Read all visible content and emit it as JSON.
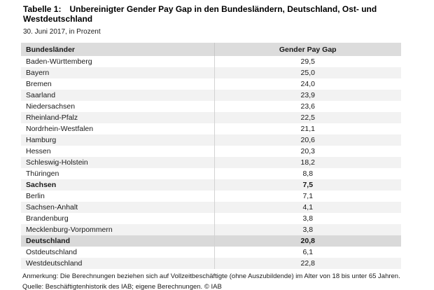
{
  "page": {
    "title_label": "Tabelle 1:",
    "title_text": "Unbereinigter Gender Pay Gap in den Bundesländern, Deutschland, Ost- und Westdeutschland",
    "subtitle": "30. Juni 2017, in Prozent",
    "note": "Anmerkung: Die Berechnungen beziehen sich auf Vollzeitbeschäftigte (ohne Auszubildende) im Alter von 18 bis unter 65 Jahren.",
    "source": "Quelle: Beschäftigtenhistorik des IAB; eigene Berechnungen. © IAB"
  },
  "table": {
    "columns": {
      "region": "Bundesländer",
      "value": "Gender Pay Gap"
    },
    "rows": [
      {
        "name": "Baden-Württemberg",
        "value": "29,5",
        "bold": false,
        "highlight": false
      },
      {
        "name": "Bayern",
        "value": "25,0",
        "bold": false,
        "highlight": false
      },
      {
        "name": "Bremen",
        "value": "24,0",
        "bold": false,
        "highlight": false
      },
      {
        "name": "Saarland",
        "value": "23,9",
        "bold": false,
        "highlight": false
      },
      {
        "name": "Niedersachsen",
        "value": "23,6",
        "bold": false,
        "highlight": false
      },
      {
        "name": "Rheinland-Pfalz",
        "value": "22,5",
        "bold": false,
        "highlight": false
      },
      {
        "name": "Nordrhein-Westfalen",
        "value": "21,1",
        "bold": false,
        "highlight": false
      },
      {
        "name": "Hamburg",
        "value": "20,6",
        "bold": false,
        "highlight": false
      },
      {
        "name": "Hessen",
        "value": "20,3",
        "bold": false,
        "highlight": false
      },
      {
        "name": "Schleswig-Holstein",
        "value": "18,2",
        "bold": false,
        "highlight": false
      },
      {
        "name": "Thüringen",
        "value": "8,8",
        "bold": false,
        "highlight": false
      },
      {
        "name": "Sachsen",
        "value": "7,5",
        "bold": true,
        "highlight": false
      },
      {
        "name": "Berlin",
        "value": "7,1",
        "bold": false,
        "highlight": false
      },
      {
        "name": "Sachsen-Anhalt",
        "value": "4,1",
        "bold": false,
        "highlight": false
      },
      {
        "name": "Brandenburg",
        "value": "3,8",
        "bold": false,
        "highlight": false
      },
      {
        "name": "Mecklenburg-Vorpommern",
        "value": "3,8",
        "bold": false,
        "highlight": false
      },
      {
        "name": "Deutschland",
        "value": "20,8",
        "bold": true,
        "highlight": true
      },
      {
        "name": "Ostdeutschland",
        "value": "6,1",
        "bold": false,
        "highlight": false
      },
      {
        "name": "Westdeutschland",
        "value": "22,8",
        "bold": false,
        "highlight": false
      }
    ]
  },
  "colors": {
    "header_bg": "#dcdcdc",
    "alt_row_bg": "#f2f2f2",
    "highlight_row_bg": "#d9d9d9",
    "column_divider": "#d2d2d2",
    "text": "#1a1a1a"
  }
}
